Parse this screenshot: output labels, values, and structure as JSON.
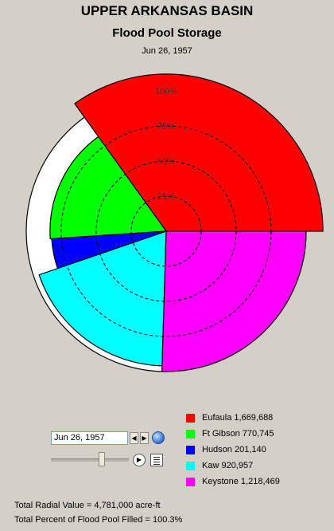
{
  "chart_data": {
    "type": "polar-area",
    "title": "UPPER ARKANSAS BASIN",
    "subtitle": "Flood Pool Storage",
    "date": "Jun 26, 1957",
    "ring_labels": [
      "25%",
      "50%",
      "75%",
      "100%"
    ],
    "series": [
      {
        "name": "Eufaula",
        "value_label": "1,669,688",
        "value": 1669688,
        "percent_filled": 112,
        "color": "#ff0000"
      },
      {
        "name": "Ft Gibson",
        "value_label": "770,745",
        "value": 770745,
        "percent_filled": 83,
        "color": "#00ff00"
      },
      {
        "name": "Hudson",
        "value_label": "201,140",
        "value": 201140,
        "percent_filled": 82,
        "color": "#0000ff"
      },
      {
        "name": "Kaw",
        "value_label": "920,957",
        "value": 920957,
        "percent_filled": 96,
        "color": "#00ffff"
      },
      {
        "name": "Keystone",
        "value_label": "1,218,469",
        "value": 1218469,
        "percent_filled": 100,
        "color": "#ff00ff"
      }
    ]
  },
  "controls": {
    "date_value": "Jun 26, 1957",
    "prev_label": "◀",
    "next_label": "▶",
    "play_label": "▶",
    "slider_fraction": 0.65
  },
  "footer": {
    "total_radial": "Total Radial Value =  4,781,000 acre-ft",
    "total_percent": "Total Percent of Flood Pool Filled =  100.3%"
  }
}
